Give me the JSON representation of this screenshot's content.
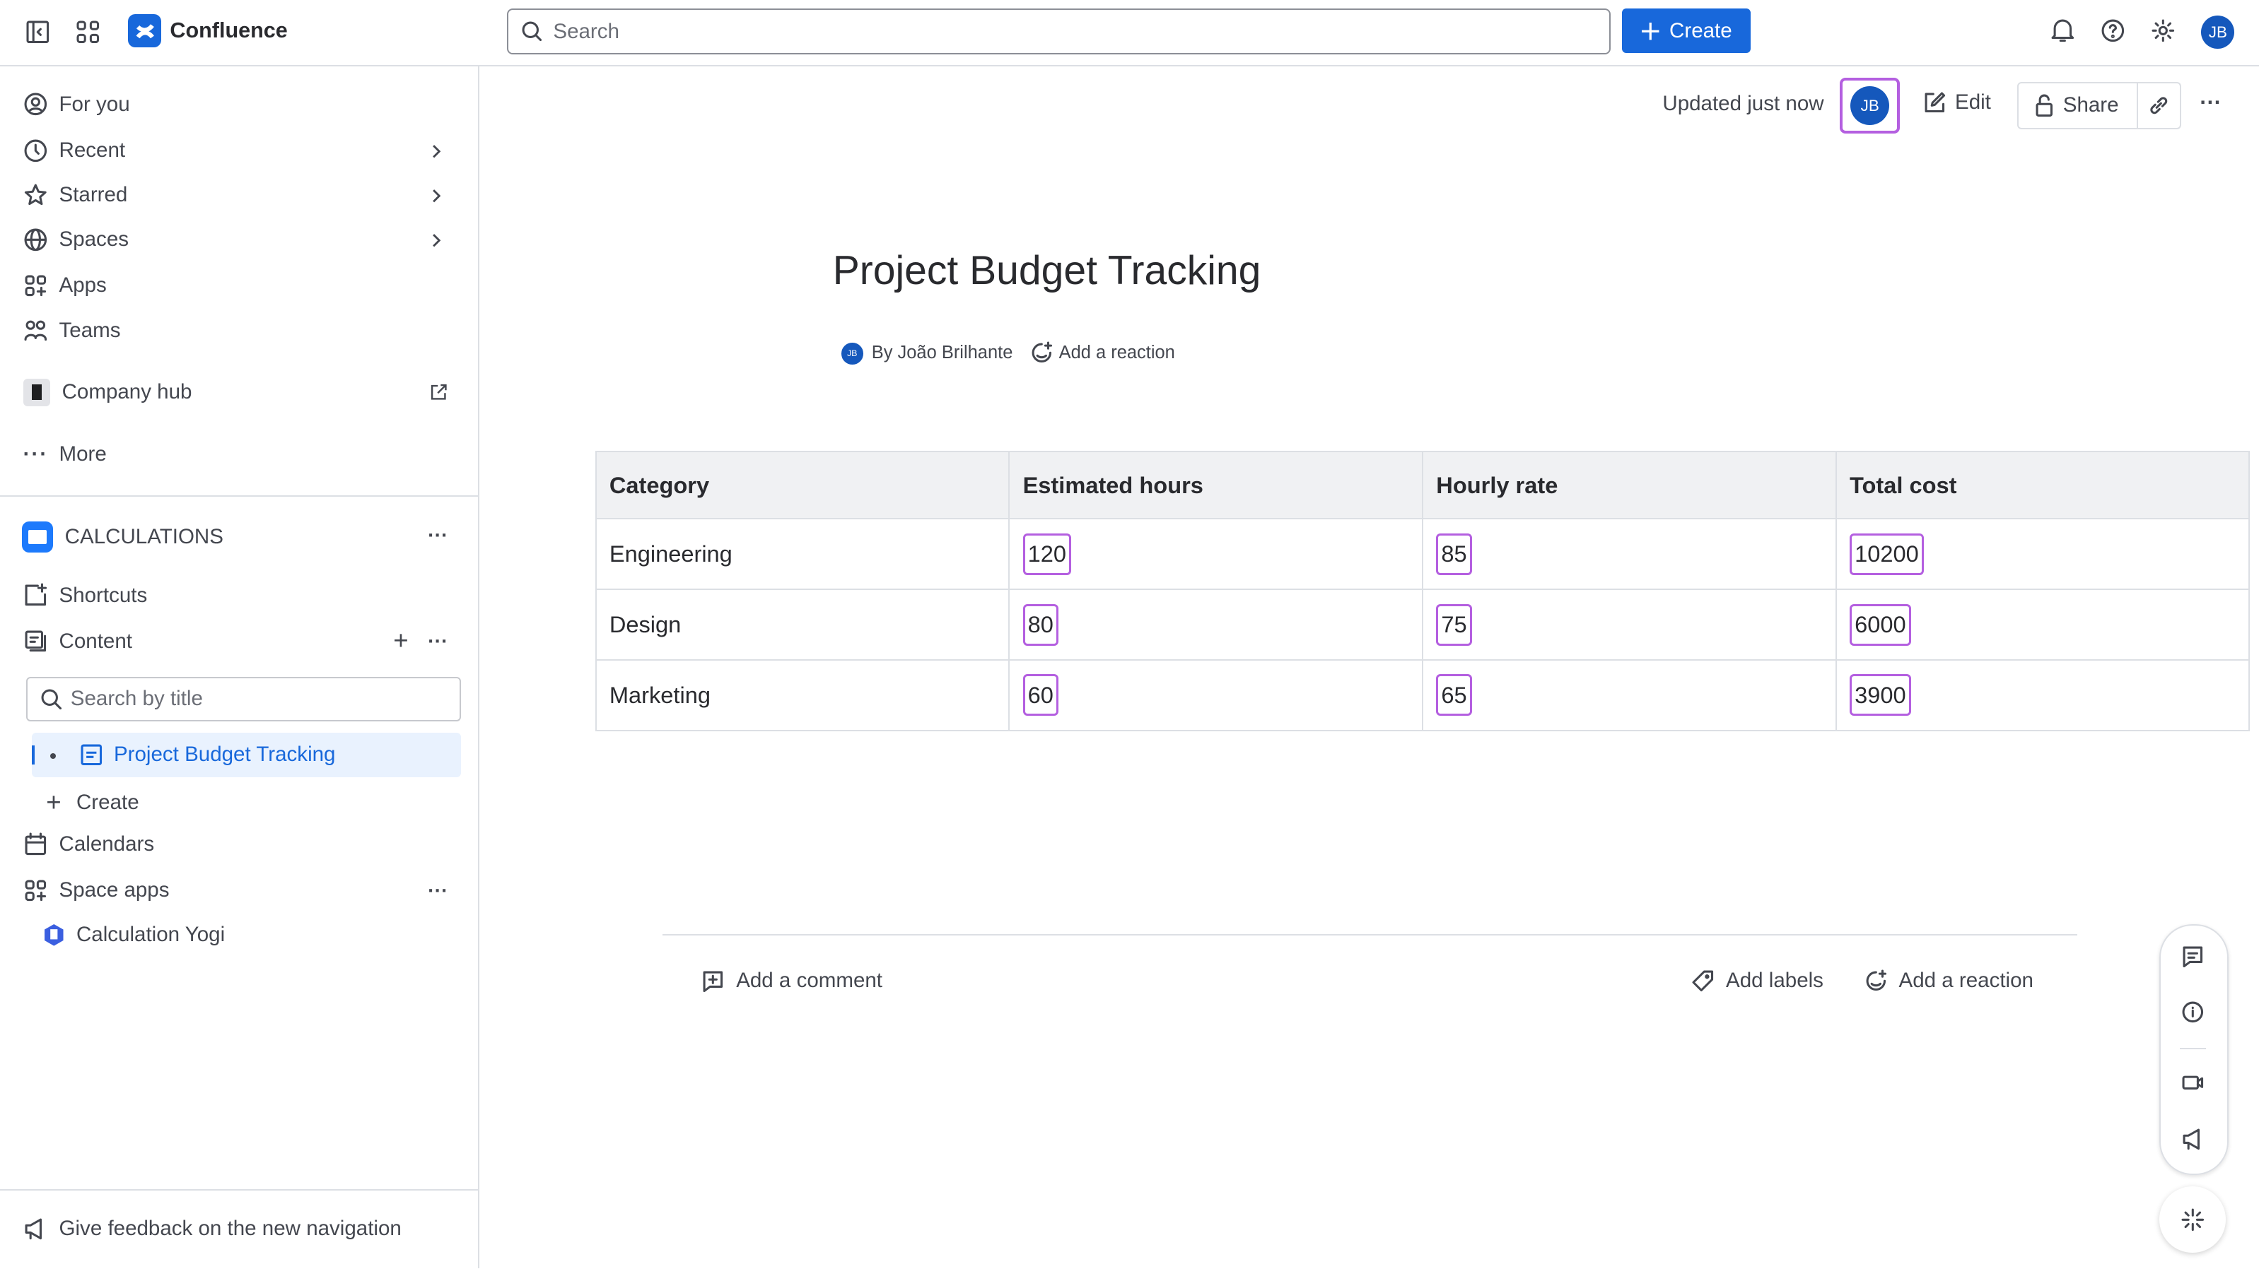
{
  "topbar": {
    "app_name": "Confluence",
    "search_placeholder": "Search",
    "create_label": "Create",
    "avatar": "JB"
  },
  "sidebar": {
    "items": [
      {
        "label": "For you"
      },
      {
        "label": "Recent"
      },
      {
        "label": "Starred"
      },
      {
        "label": "Spaces"
      },
      {
        "label": "Apps"
      },
      {
        "label": "Teams"
      }
    ],
    "company_hub": "Company hub",
    "more": "More",
    "space": {
      "name": "CALCULATIONS",
      "shortcuts": "Shortcuts",
      "content": "Content",
      "search_placeholder": "Search by title",
      "page": "Project Budget Tracking",
      "create": "Create",
      "calendars": "Calendars",
      "space_apps": "Space apps",
      "app": "Calculation Yogi"
    },
    "feedback": "Give feedback on the new navigation"
  },
  "page": {
    "updated": "Updated just now",
    "avatar": "JB",
    "edit": "Edit",
    "share": "Share",
    "title": "Project Budget Tracking",
    "byline": "By João Brilhante",
    "add_reaction": "Add a reaction",
    "table": {
      "headers": [
        "Category",
        "Estimated hours",
        "Hourly rate",
        "Total cost"
      ],
      "rows": [
        [
          "Engineering",
          "120",
          "85",
          "10200"
        ],
        [
          "Design",
          "80",
          "75",
          "6000"
        ],
        [
          "Marketing",
          "60",
          "65",
          "3900"
        ]
      ]
    },
    "add_comment": "Add a comment",
    "add_labels": "Add labels",
    "add_reaction_footer": "Add a reaction"
  },
  "colors": {
    "brand": "#1868db",
    "highlight": "#b45fe0",
    "selected_bg": "#e9f2fe"
  }
}
